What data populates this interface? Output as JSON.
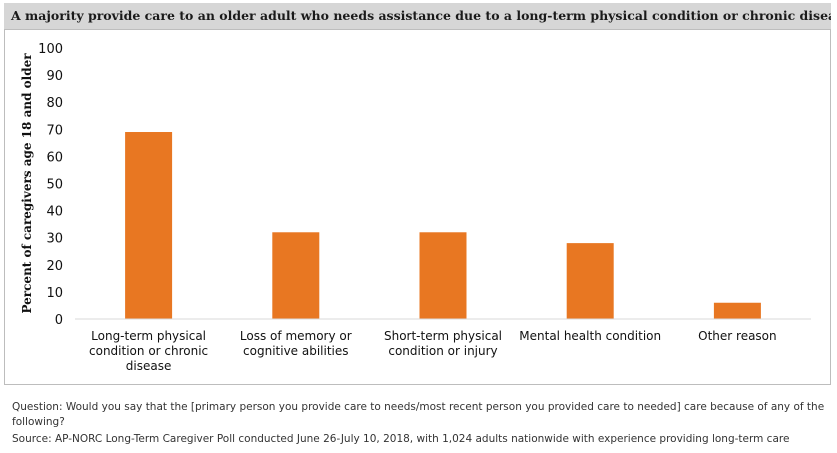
{
  "header": {
    "title": "A majority provide care to an older adult who needs assistance due to a long-term physical condition or chronic disease."
  },
  "chart_data": {
    "type": "bar",
    "title": "A majority provide care to an older adult who needs assistance due to a long-term physical condition or chronic disease.",
    "ylabel": "Percent of caregivers age 18 and older",
    "xlabel": "",
    "ylim": [
      0,
      100
    ],
    "yticks": [
      0,
      10,
      20,
      30,
      40,
      50,
      60,
      70,
      80,
      90,
      100
    ],
    "grid": false,
    "bar_color": "#e87722",
    "categories": [
      [
        "Long-term physical",
        "condition or chronic",
        "disease"
      ],
      [
        "Loss of memory or",
        "cognitive abilities"
      ],
      [
        "Short-term physical",
        "condition or injury"
      ],
      [
        "Mental health condition"
      ],
      [
        "Other reason"
      ]
    ],
    "values": [
      69,
      32,
      32,
      28,
      6
    ]
  },
  "footer": {
    "question": "Question: Would you say that the [primary person you provide care to needs/most recent person you provided care to needed] care because of any of the following?",
    "source": "Source: AP-NORC Long-Term Caregiver Poll conducted June 26-July 10, 2018, with 1,024 adults nationwide with experience providing long-term care"
  }
}
